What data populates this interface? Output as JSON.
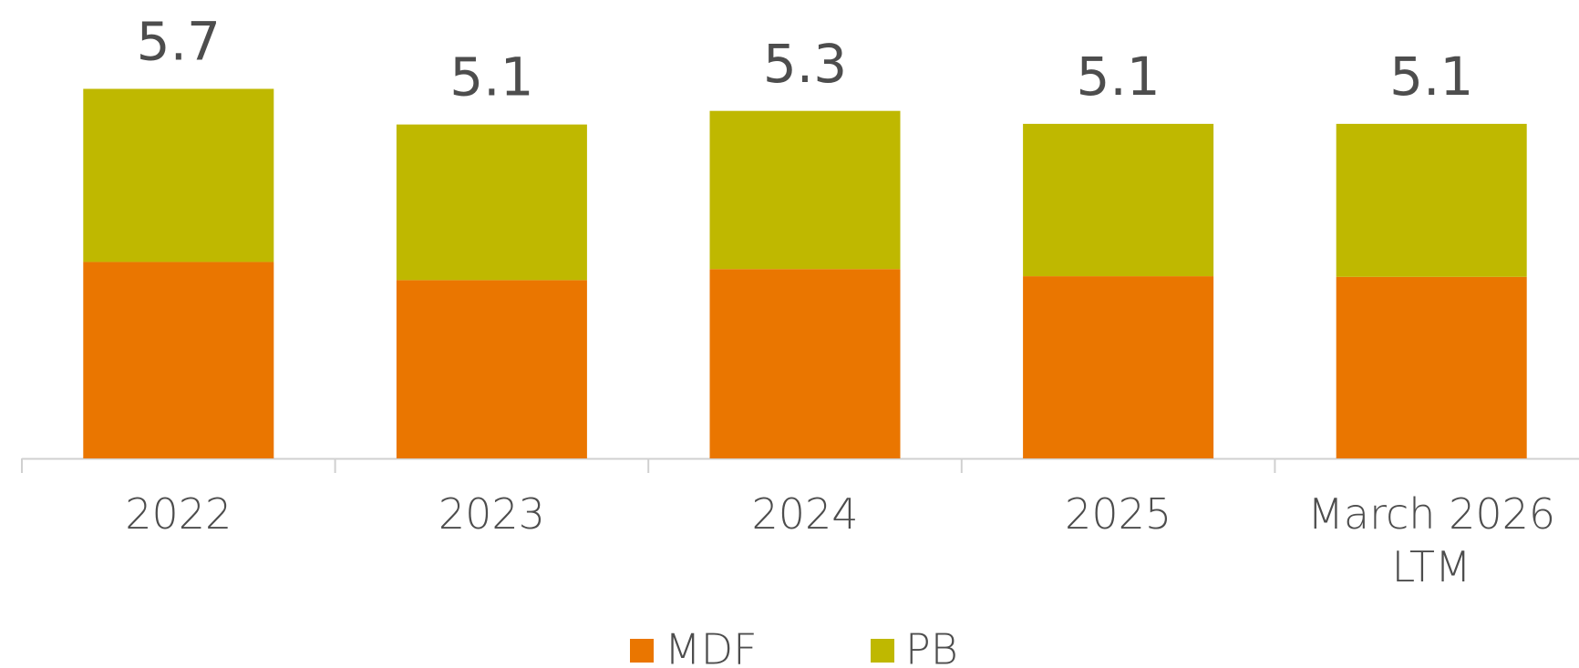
{
  "chart_data": {
    "type": "stacked_bar",
    "categories": [
      "2022",
      "2023",
      "2024",
      "2025",
      "March 2026\nLTM"
    ],
    "series": [
      {
        "name": "MDF",
        "color": "#ea7600",
        "values": [
          3.03,
          2.75,
          2.92,
          2.81,
          2.8
        ]
      },
      {
        "name": "PB",
        "color": "#bfb800",
        "values": [
          2.67,
          2.4,
          2.44,
          2.35,
          2.36
        ]
      }
    ],
    "totals": [
      5.7,
      5.1,
      5.3,
      5.1,
      5.1
    ],
    "ylim": [
      0,
      7
    ]
  }
}
